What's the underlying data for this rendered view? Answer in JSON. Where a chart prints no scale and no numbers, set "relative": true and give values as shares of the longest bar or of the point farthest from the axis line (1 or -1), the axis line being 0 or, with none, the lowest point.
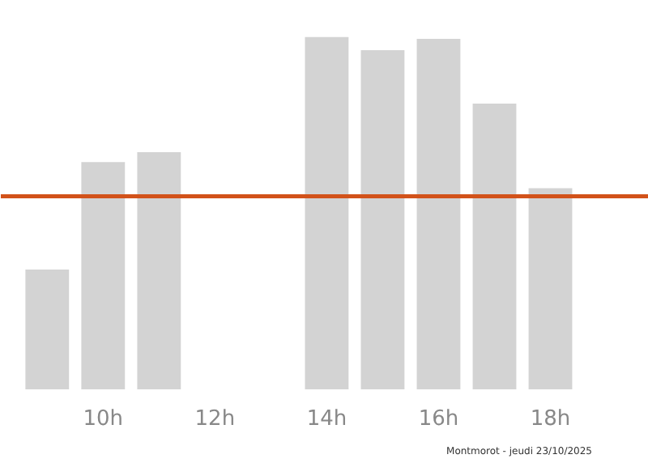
{
  "chart_data": {
    "type": "bar",
    "relative": true,
    "x": [
      9,
      10,
      11,
      12,
      13,
      14,
      15,
      16,
      17,
      18
    ],
    "values": [
      0.34,
      0.645,
      0.673,
      0,
      0,
      1,
      0.963,
      0.995,
      0.811,
      0.571
    ],
    "color": "#d3d3d3",
    "xlim": [
      8.17,
      19.76
    ],
    "xticks": [
      {
        "value": 10,
        "label": "10h"
      },
      {
        "value": 12,
        "label": "12h"
      },
      {
        "value": 14,
        "label": "14h"
      },
      {
        "value": 16,
        "label": "16h"
      },
      {
        "value": 18,
        "label": "18h"
      }
    ],
    "ref_lines": [
      {
        "axis": "y",
        "value": 0.548,
        "label": null,
        "color": "#d2521a"
      }
    ],
    "tick_labels": "x",
    "grid": false,
    "annotations": [
      "Montmorot - jeudi 23/10/2025"
    ]
  }
}
